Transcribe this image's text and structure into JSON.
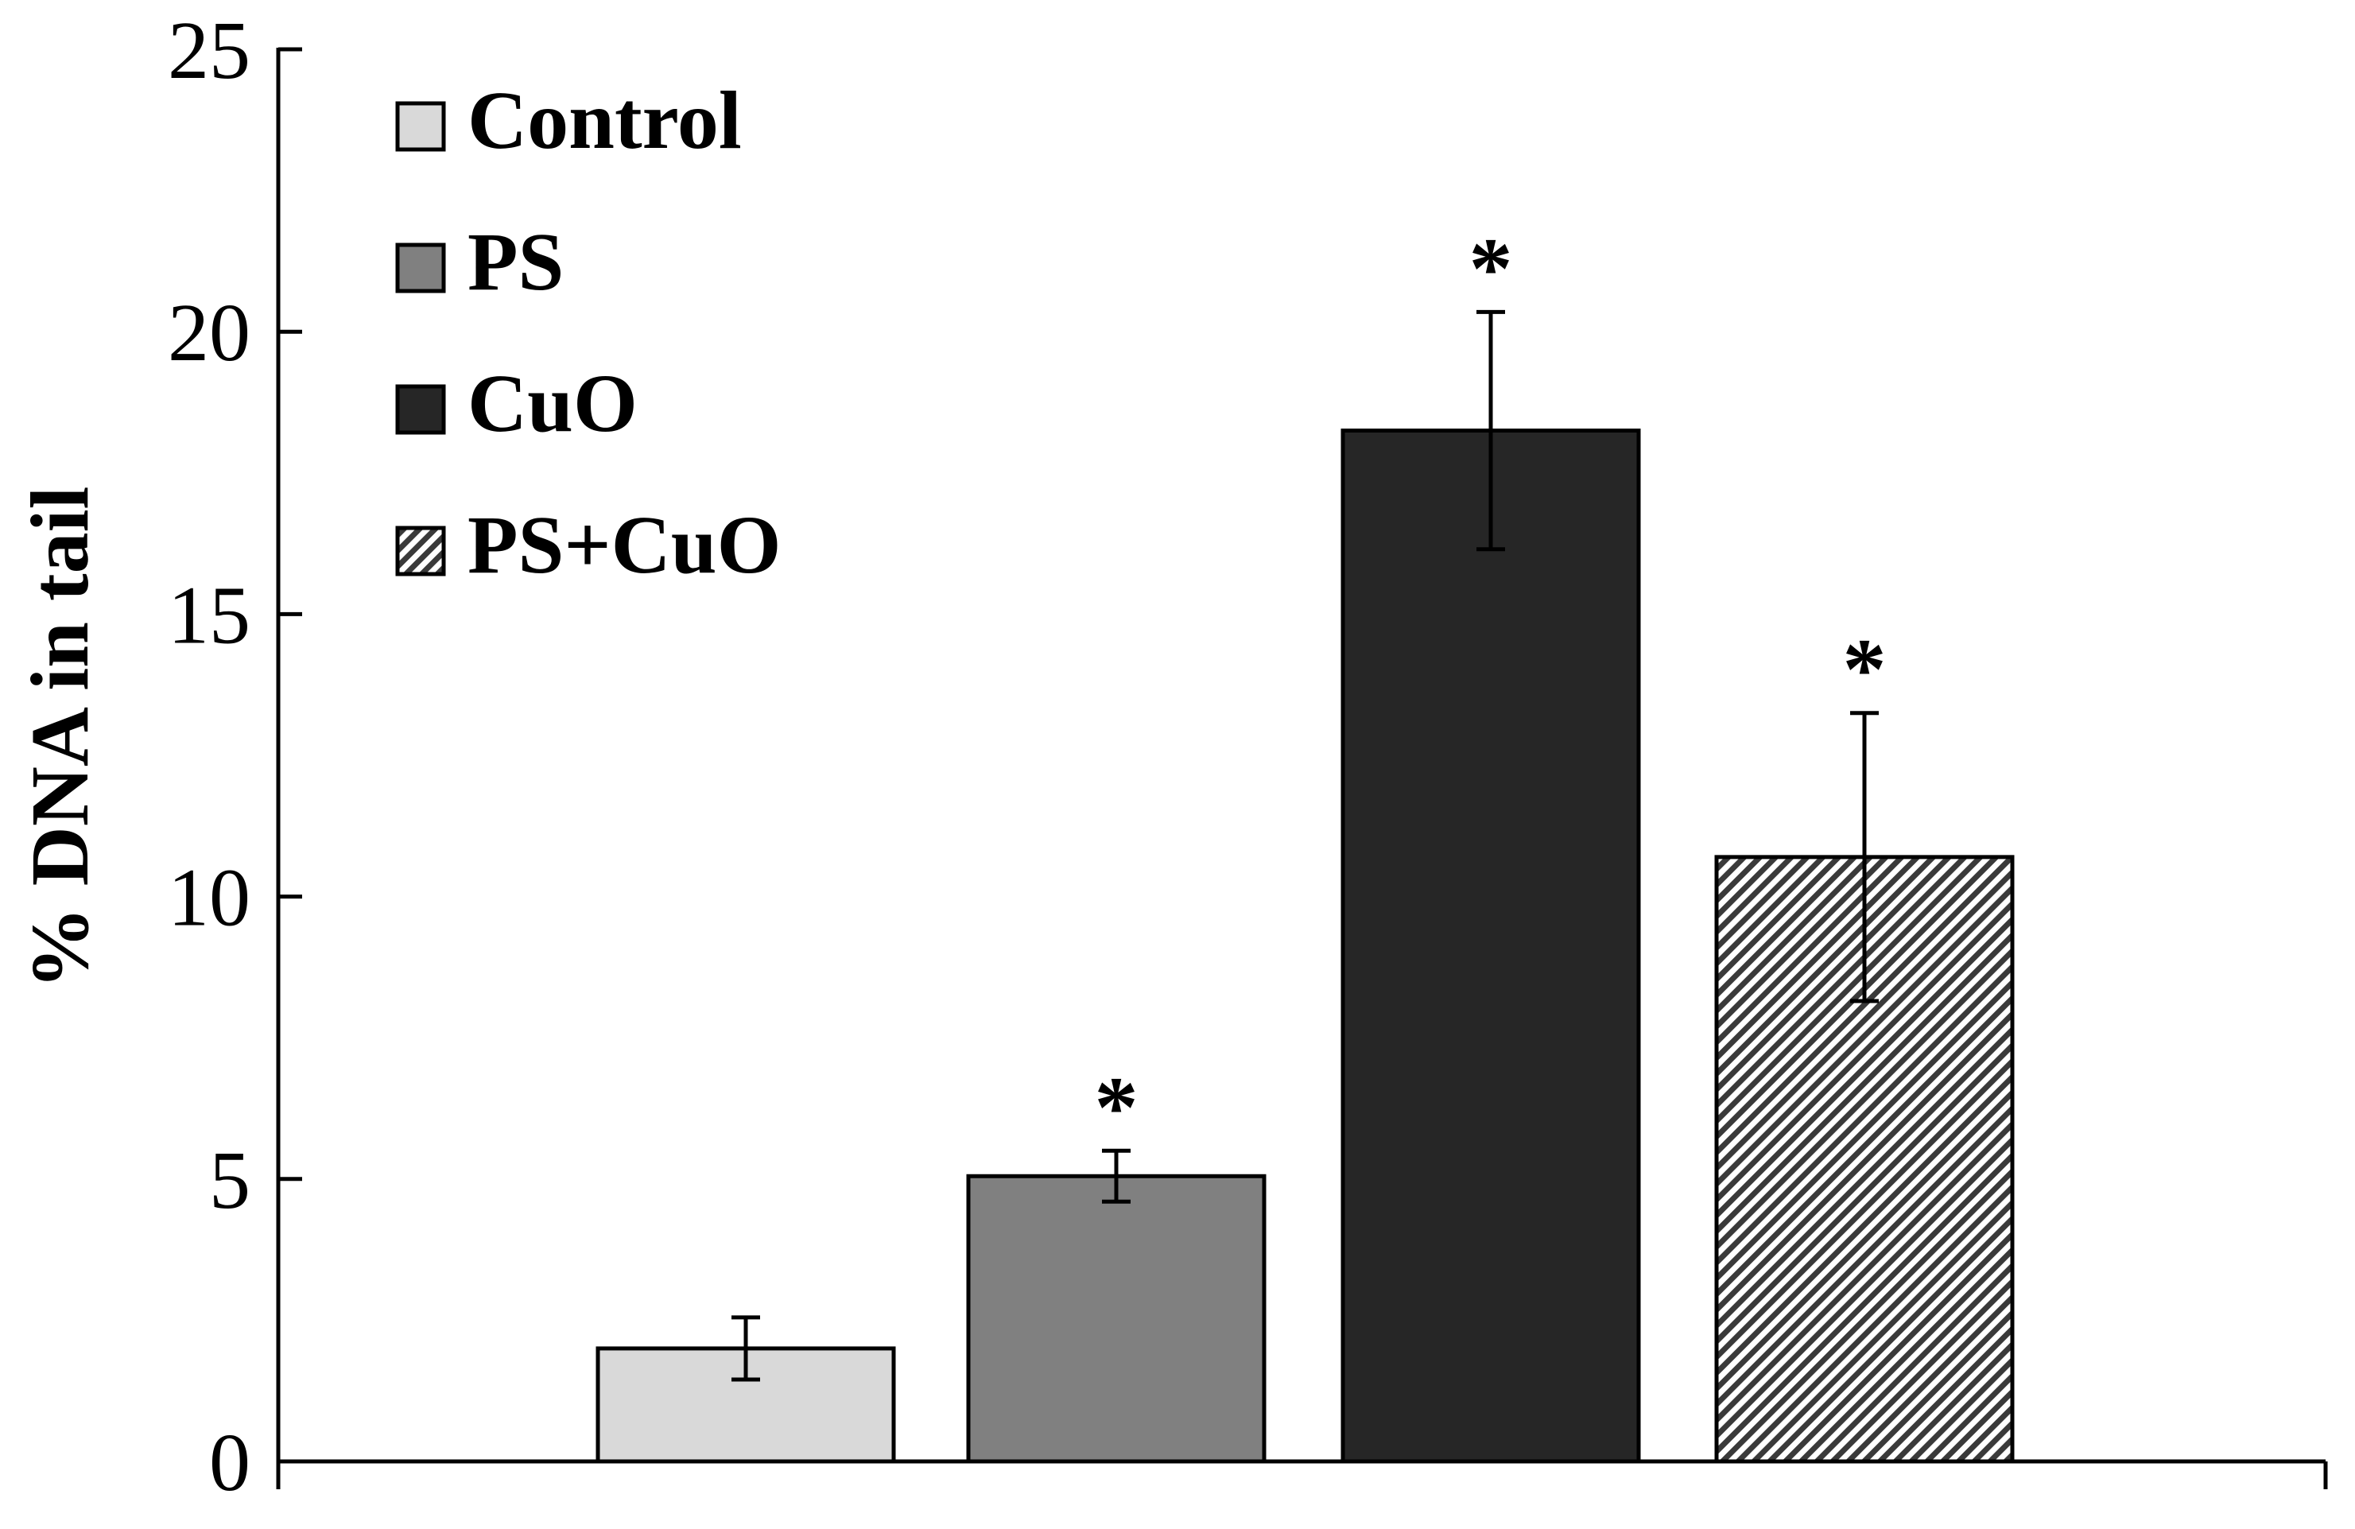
{
  "chart_data": {
    "type": "bar",
    "title": "",
    "xlabel": "",
    "ylabel": "% DNA in tail",
    "ylim": [
      0,
      25
    ],
    "yticks": [
      0,
      5,
      10,
      15,
      20,
      25
    ],
    "grid": false,
    "legend_position": "top-left",
    "significance_marker": "*",
    "categories": [
      "Control",
      "PS",
      "CuO",
      "PS+CuO"
    ],
    "series": [
      {
        "name": "Control",
        "value": 2.0,
        "error": 0.55,
        "significant": false,
        "fill": "#d9d9d9",
        "pattern": "solid"
      },
      {
        "name": "PS",
        "value": 5.05,
        "error": 0.45,
        "significant": true,
        "fill": "#808080",
        "pattern": "solid"
      },
      {
        "name": "CuO",
        "value": 18.25,
        "error": 2.1,
        "significant": true,
        "fill": "#262626",
        "pattern": "solid"
      },
      {
        "name": "PS+CuO",
        "value": 10.7,
        "error": 2.55,
        "significant": true,
        "fill": "#ffffff",
        "pattern": "diagonal-stripes"
      }
    ]
  }
}
